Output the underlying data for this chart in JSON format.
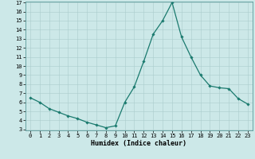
{
  "x": [
    0,
    1,
    2,
    3,
    4,
    5,
    6,
    7,
    8,
    9,
    10,
    11,
    12,
    13,
    14,
    15,
    16,
    17,
    18,
    19,
    20,
    21,
    22,
    23
  ],
  "y": [
    6.5,
    6.0,
    5.3,
    4.9,
    4.5,
    4.2,
    3.8,
    3.5,
    3.2,
    3.4,
    6.0,
    7.7,
    10.5,
    13.5,
    15.0,
    17.0,
    13.2,
    11.0,
    9.0,
    7.8,
    7.6,
    7.5,
    6.4,
    5.8
  ],
  "line_color": "#1a7a6e",
  "marker": "D",
  "marker_size": 1.8,
  "bg_color": "#cce8e8",
  "grid_color": "#aacccc",
  "xlabel": "Humidex (Indice chaleur)",
  "ylim": [
    3,
    17
  ],
  "xlim": [
    -0.5,
    23.5
  ],
  "yticks": [
    3,
    4,
    5,
    6,
    7,
    8,
    9,
    10,
    11,
    12,
    13,
    14,
    15,
    16,
    17
  ],
  "xticks": [
    0,
    1,
    2,
    3,
    4,
    5,
    6,
    7,
    8,
    9,
    10,
    11,
    12,
    13,
    14,
    15,
    16,
    17,
    18,
    19,
    20,
    21,
    22,
    23
  ],
  "tick_fontsize": 5.0,
  "label_fontsize": 6.0,
  "linewidth": 0.9
}
